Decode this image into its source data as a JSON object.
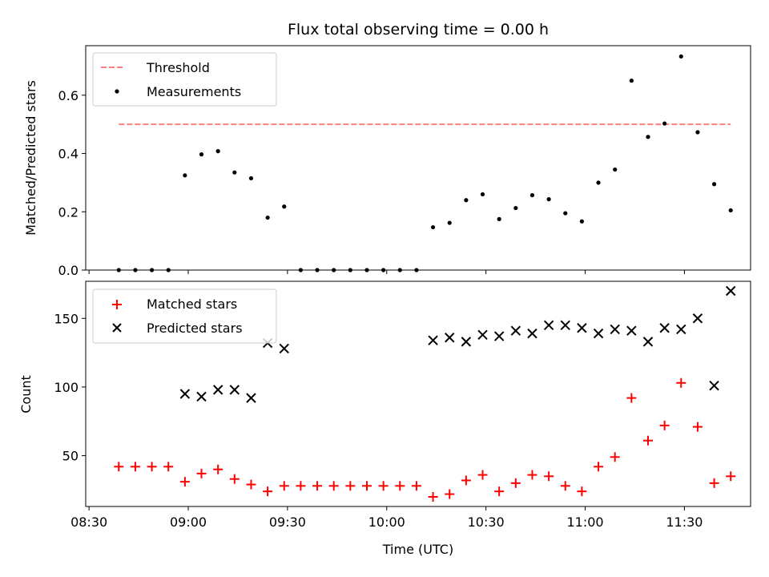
{
  "chart_data": [
    {
      "type": "scatter",
      "title": "Flux total observing time = 0.00 h",
      "xlabel": "",
      "ylabel": "Matched/Predicted stars",
      "ylim": [
        0,
        0.77
      ],
      "yticks": [
        "0.0",
        "0.2",
        "0.4",
        "0.6"
      ],
      "legend": {
        "position": "top-left",
        "entries": [
          "Threshold",
          "Measurements"
        ]
      },
      "threshold": {
        "name": "Threshold",
        "value": 0.5,
        "x_start": "08:39",
        "x_end": "11:44",
        "color": "#ff7f7f"
      },
      "series": [
        {
          "name": "Measurements",
          "color": "#000000",
          "x": [
            "08:39",
            "08:44",
            "08:49",
            "08:54",
            "08:59",
            "09:04",
            "09:09",
            "09:14",
            "09:19",
            "09:24",
            "09:29",
            "09:34",
            "09:39",
            "09:44",
            "09:49",
            "09:54",
            "09:59",
            "10:04",
            "10:09",
            "10:14",
            "10:19",
            "10:24",
            "10:29",
            "10:34",
            "10:39",
            "10:44",
            "10:49",
            "10:54",
            "10:59",
            "11:04",
            "11:09",
            "11:14",
            "11:19",
            "11:24",
            "11:29",
            "11:34",
            "11:39",
            "11:44"
          ],
          "y": [
            0.0,
            0.0,
            0.0,
            0.0,
            0.325,
            0.397,
            0.408,
            0.335,
            0.315,
            0.18,
            0.218,
            0.0,
            0.0,
            0.0,
            0.0,
            0.0,
            0.0,
            0.0,
            0.0,
            0.147,
            0.162,
            0.24,
            0.26,
            0.175,
            0.213,
            0.257,
            0.243,
            0.195,
            0.167,
            0.3,
            0.345,
            0.65,
            0.457,
            0.503,
            0.733,
            0.473,
            0.295,
            0.205
          ]
        }
      ]
    },
    {
      "type": "scatter",
      "title": "",
      "xlabel": "Time (UTC)",
      "ylabel": "Count",
      "ylim": [
        13,
        177
      ],
      "yticks": [
        "50",
        "100",
        "150"
      ],
      "xticks": [
        "08:30",
        "09:00",
        "09:30",
        "10:00",
        "10:30",
        "11:00",
        "11:30"
      ],
      "xlim": [
        "08:29",
        "11:50"
      ],
      "legend": {
        "position": "top-left",
        "entries": [
          "Matched stars",
          "Predicted stars"
        ]
      },
      "series": [
        {
          "name": "Matched stars",
          "marker": "plus",
          "color": "#ff0000",
          "x": [
            "08:39",
            "08:44",
            "08:49",
            "08:54",
            "08:59",
            "09:04",
            "09:09",
            "09:14",
            "09:19",
            "09:24",
            "09:29",
            "09:34",
            "09:39",
            "09:44",
            "09:49",
            "09:54",
            "09:59",
            "10:04",
            "10:09",
            "10:14",
            "10:19",
            "10:24",
            "10:29",
            "10:34",
            "10:39",
            "10:44",
            "10:49",
            "10:54",
            "10:59",
            "11:04",
            "11:09",
            "11:14",
            "11:19",
            "11:24",
            "11:29",
            "11:34",
            "11:39",
            "11:44"
          ],
          "y": [
            42,
            42,
            42,
            42,
            31,
            37,
            40,
            33,
            29,
            24,
            28,
            28,
            28,
            28,
            28,
            28,
            28,
            28,
            28,
            20,
            22,
            32,
            36,
            24,
            30,
            36,
            35,
            28,
            24,
            42,
            49,
            92,
            61,
            72,
            103,
            71,
            30,
            35
          ]
        },
        {
          "name": "Predicted stars",
          "marker": "x",
          "color": "#000000",
          "x": [
            "08:59",
            "09:04",
            "09:09",
            "09:14",
            "09:19",
            "09:24",
            "09:29",
            "10:14",
            "10:19",
            "10:24",
            "10:29",
            "10:34",
            "10:39",
            "10:44",
            "10:49",
            "10:54",
            "10:59",
            "11:04",
            "11:09",
            "11:14",
            "11:19",
            "11:24",
            "11:29",
            "11:34",
            "11:39",
            "11:44"
          ],
          "y": [
            95,
            93,
            98,
            98,
            92,
            132,
            128,
            134,
            136,
            133,
            138,
            137,
            141,
            139,
            145,
            145,
            143,
            139,
            142,
            141,
            133,
            143,
            142,
            150,
            101,
            170
          ]
        }
      ]
    }
  ]
}
